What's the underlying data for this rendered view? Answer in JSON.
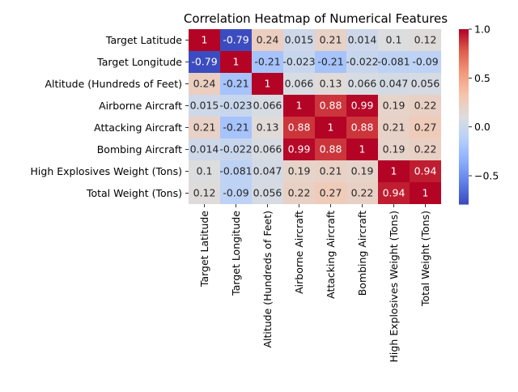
{
  "chart_data": {
    "type": "heatmap",
    "title": "Correlation Heatmap of Numerical Features",
    "xlabel": "",
    "ylabel": "",
    "labels": [
      "Target Latitude",
      "Target Longitude",
      "Altitude (Hundreds of Feet)",
      "Airborne Aircraft",
      "Attacking Aircraft",
      "Bombing Aircraft",
      "High Explosives Weight (Tons)",
      "Total Weight (Tons)"
    ],
    "values": [
      [
        1,
        -0.79,
        0.24,
        0.015,
        0.21,
        0.014,
        0.1,
        0.12
      ],
      [
        -0.79,
        1,
        -0.21,
        -0.023,
        -0.21,
        -0.022,
        -0.081,
        -0.09
      ],
      [
        0.24,
        -0.21,
        1,
        0.066,
        0.13,
        0.066,
        0.047,
        0.056
      ],
      [
        0.015,
        -0.023,
        0.066,
        1,
        0.88,
        0.99,
        0.19,
        0.22
      ],
      [
        0.21,
        -0.21,
        0.13,
        0.88,
        1,
        0.88,
        0.21,
        0.27
      ],
      [
        0.014,
        -0.022,
        0.066,
        0.99,
        0.88,
        1,
        0.19,
        0.22
      ],
      [
        0.1,
        -0.081,
        0.047,
        0.19,
        0.21,
        0.19,
        1,
        0.94
      ],
      [
        0.12,
        -0.09,
        0.056,
        0.22,
        0.27,
        0.22,
        0.94,
        1
      ]
    ],
    "colormap": "coolwarm",
    "vmin": -0.79,
    "vmax": 1,
    "colorbar_ticks": [
      1.0,
      0.5,
      0.0,
      -0.5
    ],
    "colorbar_tick_labels": [
      "1.0",
      "0.5",
      "0.0",
      "−0.5"
    ],
    "annotations": true,
    "grid": false
  }
}
